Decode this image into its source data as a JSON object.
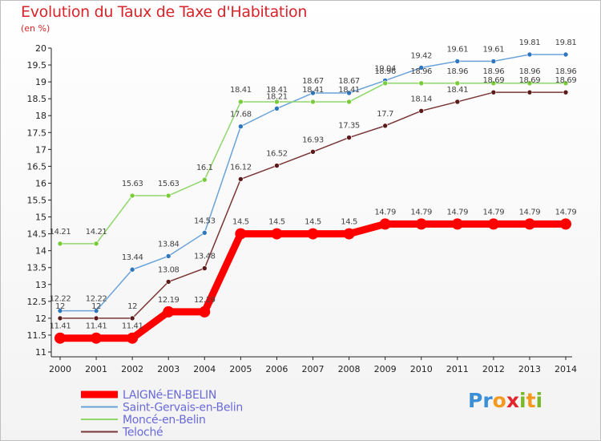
{
  "title": "Evolution du Taux de Taxe d'Habitation",
  "unit_label": "(en %)",
  "logo": {
    "text": "Proxiti",
    "letters": [
      {
        "ch": "P",
        "color": "#3a8fd6"
      },
      {
        "ch": "r",
        "color": "#3a8fd6"
      },
      {
        "ch": "o",
        "color": "#f39a1e"
      },
      {
        "ch": "x",
        "color": "#e2262b"
      },
      {
        "ch": "i",
        "color": "#79b82a"
      },
      {
        "ch": "t",
        "color": "#f39a1e"
      },
      {
        "ch": "i",
        "color": "#79b82a"
      }
    ]
  },
  "chart_data": {
    "type": "line",
    "title": "Evolution du Taux de Taxe d'Habitation",
    "ylabel": "(en %)",
    "xlabel": "",
    "x": [
      "2000",
      "2001",
      "2002",
      "2003",
      "2004",
      "2005",
      "2006",
      "2007",
      "2008",
      "2009",
      "2010",
      "2011",
      "2012",
      "2013",
      "2014"
    ],
    "ylim": [
      11,
      20
    ],
    "yticks": [
      "11",
      "11.5",
      "12",
      "12.5",
      "13",
      "13.5",
      "14",
      "14.5",
      "15",
      "15.5",
      "16",
      "16.5",
      "17",
      "17.5",
      "18",
      "18.5",
      "19",
      "19.5",
      "20"
    ],
    "grid": false,
    "legend_position": "bottom-left",
    "series": [
      {
        "name": "LAIGNé-EN-BELIN",
        "color": "#ff0000",
        "marker": "#ff0000",
        "thick": true,
        "values": [
          11.41,
          11.41,
          11.41,
          12.19,
          12.19,
          14.5,
          14.5,
          14.5,
          14.5,
          14.79,
          14.79,
          14.79,
          14.79,
          14.79,
          14.79
        ],
        "labels": [
          "11.41",
          "11.41",
          "11.41",
          "12.19",
          "12.19",
          "14.5",
          "14.5",
          "14.5",
          "14.5",
          "14.79",
          "14.79",
          "14.79",
          "14.79",
          "14.79",
          "14.79"
        ]
      },
      {
        "name": "Saint-Gervais-en-Belin",
        "color": "#6aa3d9",
        "marker": "#2f77bd",
        "thick": false,
        "values": [
          12.22,
          12.22,
          13.44,
          13.84,
          14.53,
          17.68,
          18.21,
          18.67,
          18.67,
          19.04,
          19.42,
          19.61,
          19.61,
          19.81,
          19.81
        ],
        "labels": [
          "12.22",
          "12.22",
          "13.44",
          "13.84",
          "14.53",
          "17.68",
          "18.21",
          "18.67",
          "18.67",
          "19.04",
          "19.42",
          "19.61",
          "19.61",
          "19.81",
          "19.81"
        ]
      },
      {
        "name": "Moncé-en-Belin",
        "color": "#8fd66b",
        "marker": "#7acb3a",
        "thick": false,
        "values": [
          14.21,
          14.21,
          15.63,
          15.63,
          16.1,
          18.41,
          18.41,
          18.41,
          18.41,
          18.96,
          18.96,
          18.96,
          18.96,
          18.96,
          18.96
        ],
        "labels": [
          "14.21",
          "14.21",
          "15.63",
          "15.63",
          "16.1",
          "18.41",
          "18.41",
          "18.41",
          "18.41",
          "18.96",
          "18.96",
          "18.96",
          "18.96",
          "18.96",
          "18.96"
        ]
      },
      {
        "name": "Teloché",
        "color": "#7a3535",
        "marker": "#5a1a1a",
        "thick": false,
        "values": [
          12,
          12,
          12,
          13.08,
          13.48,
          16.12,
          16.52,
          16.93,
          17.35,
          17.7,
          18.14,
          18.41,
          18.69,
          18.69,
          18.69
        ],
        "labels": [
          "12",
          "12",
          "12",
          "13.08",
          "13.48",
          "16.12",
          "16.52",
          "16.93",
          "17.35",
          "17.7",
          "18.14",
          "18.41",
          "18.69",
          "18.69",
          "18.69"
        ]
      }
    ]
  }
}
